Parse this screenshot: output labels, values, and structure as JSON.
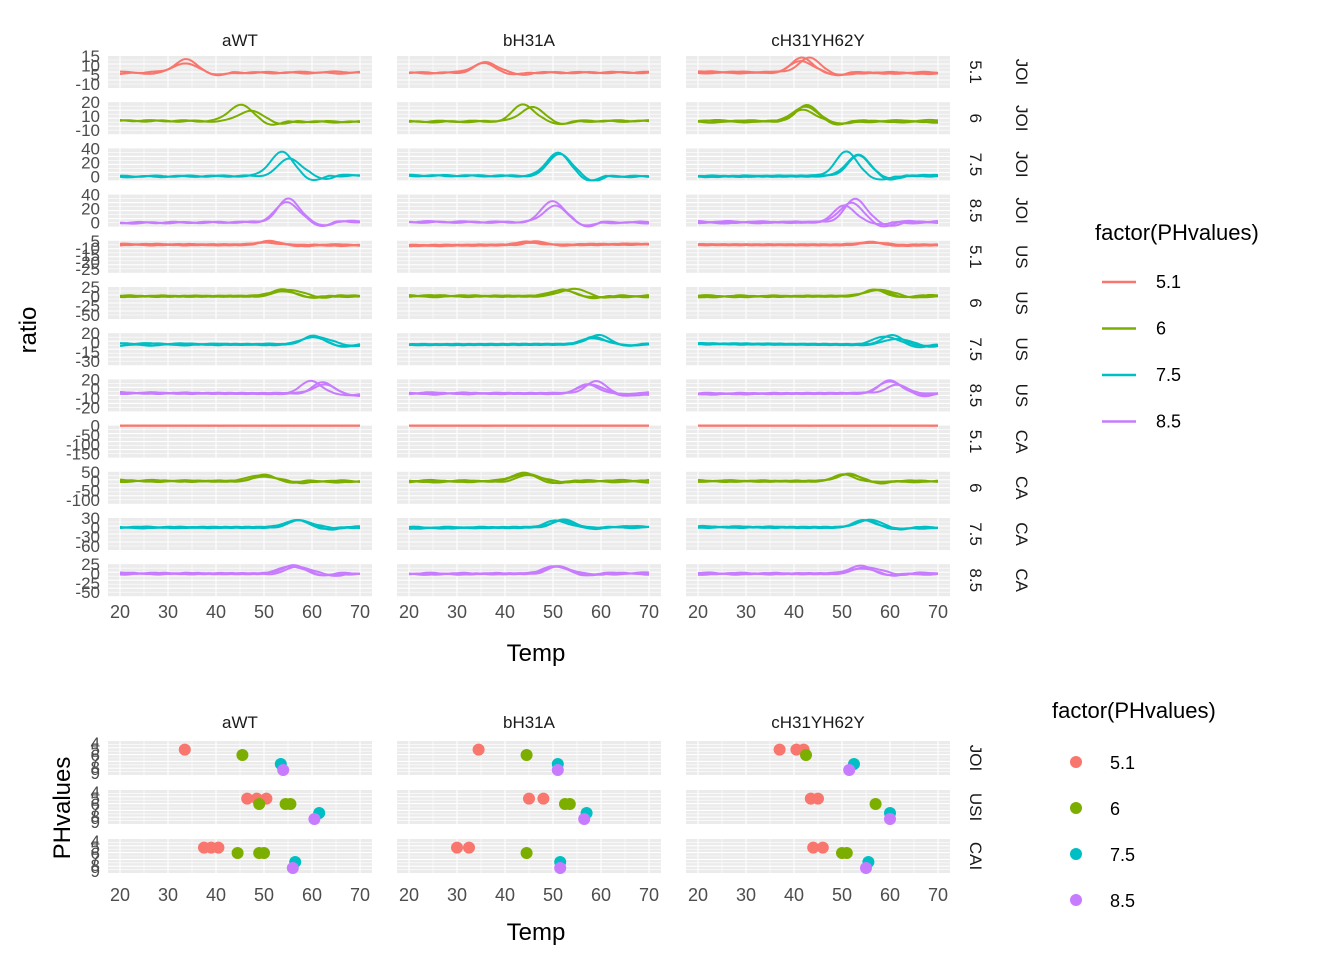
{
  "colors": {
    "5.1": "#F8766D",
    "6": "#7CAE00",
    "7.5": "#00BFC4",
    "8.5": "#C77CFF"
  },
  "chart_data": [
    {
      "type": "line",
      "facet_cols": [
        "aWT",
        "bH31A",
        "cH31YH62Y"
      ],
      "facet_rows": [
        {
          "ph": "5.1",
          "group": "JOI",
          "ticks": [
            "15",
            "10",
            "5",
            "-10"
          ],
          "ylim": [
            -12,
            16
          ]
        },
        {
          "ph": "6",
          "group": "JOI",
          "ticks": [
            "20",
            "10",
            "-10"
          ],
          "ylim": [
            -12,
            22
          ]
        },
        {
          "ph": "7.5",
          "group": "JOI",
          "ticks": [
            "40",
            "20",
            "0"
          ],
          "ylim": [
            -4,
            42
          ]
        },
        {
          "ph": "8.5",
          "group": "JOI",
          "ticks": [
            "40",
            "20",
            "0"
          ],
          "ylim": [
            -4,
            42
          ]
        },
        {
          "ph": "5.1",
          "group": "US",
          "ticks": [
            "5",
            "-10",
            "-15",
            "-20",
            "-25"
          ],
          "ylim": [
            -28,
            6
          ]
        },
        {
          "ph": "6",
          "group": "US",
          "ticks": [
            "25",
            "0",
            "-25",
            "-50"
          ],
          "ylim": [
            -55,
            28
          ]
        },
        {
          "ph": "7.5",
          "group": "US",
          "ticks": [
            "20",
            "0",
            "-15",
            "-30"
          ],
          "ylim": [
            -33,
            22
          ]
        },
        {
          "ph": "8.5",
          "group": "US",
          "ticks": [
            "20",
            "0",
            "-10",
            "-20"
          ],
          "ylim": [
            -23,
            22
          ]
        },
        {
          "ph": "5.1",
          "group": "CA",
          "ticks": [
            "0",
            "-50",
            "-100",
            "-150"
          ],
          "ylim": [
            -155,
            2
          ]
        },
        {
          "ph": "6",
          "group": "CA",
          "ticks": [
            "50",
            "0",
            "-50",
            "-100"
          ],
          "ylim": [
            -105,
            55
          ]
        },
        {
          "ph": "7.5",
          "group": "CA",
          "ticks": [
            "30",
            "0",
            "-30",
            "-60"
          ],
          "ylim": [
            -63,
            33
          ]
        },
        {
          "ph": "8.5",
          "group": "CA",
          "ticks": [
            "25",
            "0",
            "-25",
            "-50"
          ],
          "ylim": [
            -53,
            28
          ]
        }
      ],
      "peaks": [
        [
          34,
          46,
          54,
          54,
          51,
          54,
          61,
          61,
          40,
          49,
          57,
          57
        ],
        [
          35,
          45,
          51,
          51,
          46,
          53,
          58,
          58,
          36,
          45,
          51,
          51
        ],
        [
          42,
          43,
          52,
          52,
          55,
          57,
          60,
          60,
          44,
          51,
          56,
          55
        ]
      ],
      "xticks": [
        "20",
        "30",
        "40",
        "50",
        "60",
        "70"
      ],
      "xlim": [
        20,
        70
      ],
      "xlabel": "Temp",
      "ylabel": "ratio",
      "legend": {
        "title": "factor(PHvalues)",
        "items": [
          "5.1",
          "6",
          "7.5",
          "8.5"
        ]
      }
    },
    {
      "type": "scatter",
      "facet_cols": [
        "aWT",
        "bH31A",
        "cH31YH62Y"
      ],
      "facet_rows": [
        "JOI",
        "USI",
        "CAI"
      ],
      "yticks": [
        "4",
        "5",
        "6",
        "7",
        "8",
        "9"
      ],
      "ylim": [
        4,
        9
      ],
      "xticks": [
        "20",
        "30",
        "40",
        "50",
        "60",
        "70"
      ],
      "xlim": [
        20,
        70
      ],
      "xlabel": "Temp",
      "ylabel": "PHvalues",
      "legend": {
        "title": "factor(PHvalues)",
        "items": [
          "5.1",
          "6",
          "7.5",
          "8.5"
        ]
      },
      "points": [
        [
          [
            [
              33.5
            ],
            [
              45.5
            ],
            [
              53.5
            ],
            [
              54
            ]
          ],
          [
            [
              46.5,
              48.5,
              50.5
            ],
            [
              49,
              54.5,
              55.5
            ],
            [
              61.5
            ],
            [
              60.5
            ]
          ],
          [
            [
              37.5,
              39,
              40.5
            ],
            [
              44.5,
              49,
              50
            ],
            [
              56.5
            ],
            [
              56
            ]
          ]
        ],
        [
          [
            [
              34.5
            ],
            [
              44.5
            ],
            [
              51
            ],
            [
              51
            ]
          ],
          [
            [
              45,
              48
            ],
            [
              52.5,
              53.5
            ],
            [
              57
            ],
            [
              56.5
            ]
          ],
          [
            [
              30,
              32.5
            ],
            [
              44.5
            ],
            [
              51.5
            ],
            [
              51.5
            ]
          ]
        ],
        [
          [
            [
              37,
              40.5,
              42
            ],
            [
              42.5
            ],
            [
              52.5
            ],
            [
              51.5
            ]
          ],
          [
            [
              43.5,
              45
            ],
            [
              57
            ],
            [
              60
            ],
            [
              60
            ]
          ],
          [
            [
              44,
              46
            ],
            [
              50,
              51
            ],
            [
              55.5
            ],
            [
              55
            ]
          ]
        ]
      ]
    }
  ]
}
